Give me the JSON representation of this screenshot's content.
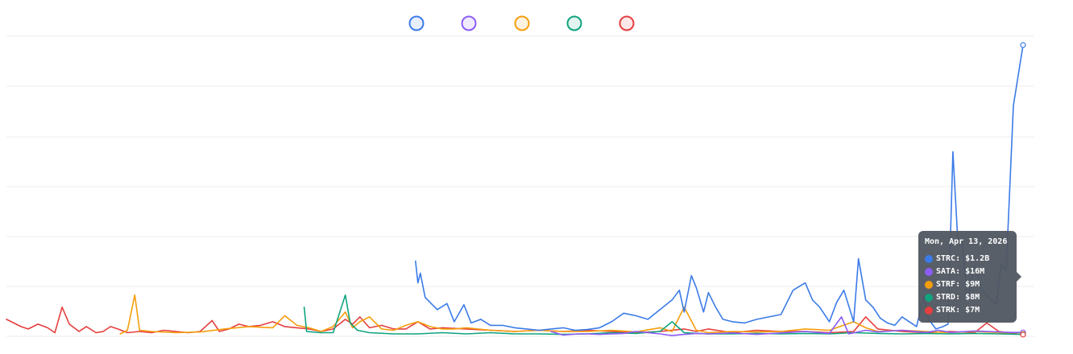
{
  "chart_data": {
    "type": "line",
    "title": "",
    "xlabel": "",
    "ylabel": "",
    "grid": true,
    "legend_placement": "top-center",
    "x_range": [
      0,
      422
    ],
    "ylim": [
      0,
      1200
    ],
    "series": [
      {
        "name": "STRC",
        "color": "#3b7be8",
        "points": [
          [
            169,
            310
          ],
          [
            170,
            220
          ],
          [
            171,
            260
          ],
          [
            173,
            160
          ],
          [
            175,
            140
          ],
          [
            178,
            110
          ],
          [
            182,
            135
          ],
          [
            185,
            60
          ],
          [
            189,
            130
          ],
          [
            192,
            55
          ],
          [
            196,
            70
          ],
          [
            200,
            45
          ],
          [
            205,
            45
          ],
          [
            210,
            35
          ],
          [
            215,
            30
          ],
          [
            220,
            25
          ],
          [
            225,
            30
          ],
          [
            230,
            35
          ],
          [
            235,
            25
          ],
          [
            240,
            28
          ],
          [
            245,
            35
          ],
          [
            250,
            60
          ],
          [
            255,
            95
          ],
          [
            260,
            85
          ],
          [
            265,
            70
          ],
          [
            270,
            110
          ],
          [
            275,
            150
          ],
          [
            278,
            190
          ],
          [
            280,
            100
          ],
          [
            283,
            250
          ],
          [
            285,
            200
          ],
          [
            288,
            100
          ],
          [
            290,
            180
          ],
          [
            293,
            120
          ],
          [
            296,
            70
          ],
          [
            300,
            60
          ],
          [
            305,
            55
          ],
          [
            310,
            70
          ],
          [
            315,
            80
          ],
          [
            320,
            90
          ],
          [
            325,
            190
          ],
          [
            330,
            220
          ],
          [
            333,
            150
          ],
          [
            336,
            120
          ],
          [
            340,
            60
          ],
          [
            343,
            140
          ],
          [
            346,
            190
          ],
          [
            350,
            60
          ],
          [
            352,
            320
          ],
          [
            355,
            150
          ],
          [
            358,
            120
          ],
          [
            361,
            75
          ],
          [
            364,
            55
          ],
          [
            367,
            45
          ],
          [
            370,
            80
          ],
          [
            373,
            60
          ],
          [
            376,
            40
          ],
          [
            379,
            165
          ],
          [
            381,
            70
          ],
          [
            384,
            30
          ],
          [
            387,
            40
          ],
          [
            389,
            50
          ],
          [
            391,
            760
          ],
          [
            393,
            400
          ],
          [
            395,
            380
          ],
          [
            397,
            150
          ],
          [
            400,
            290
          ],
          [
            403,
            190
          ],
          [
            406,
            160
          ],
          [
            409,
            130
          ],
          [
            411,
            300
          ],
          [
            413,
            270
          ],
          [
            416,
            950
          ],
          [
            420,
            1200
          ]
        ]
      },
      {
        "name": "SATA",
        "color": "#8b5cf6",
        "points": [
          [
            225,
            20
          ],
          [
            230,
            5
          ],
          [
            236,
            10
          ],
          [
            240,
            10
          ],
          [
            245,
            8
          ],
          [
            250,
            10
          ],
          [
            255,
            12
          ],
          [
            260,
            20
          ],
          [
            265,
            15
          ],
          [
            270,
            10
          ],
          [
            275,
            3
          ],
          [
            280,
            8
          ],
          [
            285,
            12
          ],
          [
            290,
            10
          ],
          [
            300,
            14
          ],
          [
            310,
            8
          ],
          [
            330,
            20
          ],
          [
            340,
            12
          ],
          [
            345,
            80
          ],
          [
            348,
            10
          ],
          [
            355,
            25
          ],
          [
            360,
            18
          ],
          [
            370,
            25
          ],
          [
            380,
            16
          ],
          [
            385,
            25
          ],
          [
            390,
            16
          ],
          [
            400,
            22
          ],
          [
            410,
            18
          ],
          [
            415,
            16
          ],
          [
            420,
            16
          ]
        ]
      },
      {
        "name": "STRF",
        "color": "#f59e0b",
        "points": [
          [
            47,
            10
          ],
          [
            50,
            25
          ],
          [
            53,
            170
          ],
          [
            55,
            25
          ],
          [
            60,
            20
          ],
          [
            70,
            15
          ],
          [
            80,
            18
          ],
          [
            90,
            30
          ],
          [
            100,
            40
          ],
          [
            110,
            35
          ],
          [
            115,
            85
          ],
          [
            120,
            45
          ],
          [
            125,
            35
          ],
          [
            130,
            20
          ],
          [
            135,
            40
          ],
          [
            140,
            100
          ],
          [
            143,
            35
          ],
          [
            146,
            60
          ],
          [
            150,
            80
          ],
          [
            155,
            30
          ],
          [
            160,
            25
          ],
          [
            165,
            45
          ],
          [
            170,
            60
          ],
          [
            175,
            40
          ],
          [
            180,
            30
          ],
          [
            185,
            30
          ],
          [
            190,
            35
          ],
          [
            200,
            25
          ],
          [
            210,
            20
          ],
          [
            220,
            25
          ],
          [
            230,
            20
          ],
          [
            240,
            20
          ],
          [
            250,
            25
          ],
          [
            260,
            18
          ],
          [
            270,
            35
          ],
          [
            275,
            20
          ],
          [
            280,
            120
          ],
          [
            285,
            25
          ],
          [
            290,
            15
          ],
          [
            300,
            20
          ],
          [
            310,
            18
          ],
          [
            320,
            20
          ],
          [
            330,
            30
          ],
          [
            340,
            25
          ],
          [
            350,
            60
          ],
          [
            355,
            35
          ],
          [
            360,
            20
          ],
          [
            370,
            25
          ],
          [
            380,
            20
          ],
          [
            390,
            15
          ],
          [
            400,
            20
          ],
          [
            410,
            15
          ],
          [
            415,
            10
          ],
          [
            420,
            9
          ]
        ]
      },
      {
        "name": "STRD",
        "color": "#10a37f",
        "points": [
          [
            123,
            120
          ],
          [
            124,
            20
          ],
          [
            130,
            15
          ],
          [
            135,
            15
          ],
          [
            140,
            170
          ],
          [
            142,
            55
          ],
          [
            145,
            25
          ],
          [
            150,
            15
          ],
          [
            160,
            10
          ],
          [
            170,
            10
          ],
          [
            180,
            15
          ],
          [
            190,
            10
          ],
          [
            200,
            15
          ],
          [
            210,
            10
          ],
          [
            220,
            10
          ],
          [
            230,
            8
          ],
          [
            240,
            10
          ],
          [
            250,
            15
          ],
          [
            260,
            12
          ],
          [
            270,
            20
          ],
          [
            275,
            60
          ],
          [
            280,
            15
          ],
          [
            290,
            10
          ],
          [
            300,
            10
          ],
          [
            310,
            12
          ],
          [
            320,
            10
          ],
          [
            330,
            12
          ],
          [
            340,
            10
          ],
          [
            350,
            15
          ],
          [
            360,
            12
          ],
          [
            370,
            10
          ],
          [
            380,
            12
          ],
          [
            390,
            10
          ],
          [
            400,
            12
          ],
          [
            410,
            10
          ],
          [
            420,
            8
          ]
        ]
      },
      {
        "name": "STRK",
        "color": "#e53e3e",
        "points": [
          [
            0,
            70
          ],
          [
            3,
            55
          ],
          [
            6,
            40
          ],
          [
            9,
            30
          ],
          [
            13,
            50
          ],
          [
            17,
            35
          ],
          [
            20,
            15
          ],
          [
            23,
            120
          ],
          [
            26,
            50
          ],
          [
            30,
            20
          ],
          [
            33,
            40
          ],
          [
            37,
            15
          ],
          [
            40,
            20
          ],
          [
            43,
            40
          ],
          [
            46,
            30
          ],
          [
            50,
            15
          ],
          [
            55,
            20
          ],
          [
            60,
            15
          ],
          [
            65,
            25
          ],
          [
            70,
            20
          ],
          [
            75,
            15
          ],
          [
            80,
            20
          ],
          [
            85,
            65
          ],
          [
            88,
            20
          ],
          [
            92,
            30
          ],
          [
            96,
            50
          ],
          [
            100,
            40
          ],
          [
            105,
            45
          ],
          [
            110,
            60
          ],
          [
            115,
            40
          ],
          [
            120,
            35
          ],
          [
            125,
            30
          ],
          [
            130,
            20
          ],
          [
            135,
            30
          ],
          [
            140,
            70
          ],
          [
            143,
            50
          ],
          [
            146,
            80
          ],
          [
            150,
            35
          ],
          [
            155,
            45
          ],
          [
            160,
            30
          ],
          [
            165,
            30
          ],
          [
            170,
            60
          ],
          [
            175,
            30
          ],
          [
            180,
            35
          ],
          [
            190,
            30
          ],
          [
            200,
            25
          ],
          [
            210,
            20
          ],
          [
            220,
            25
          ],
          [
            230,
            20
          ],
          [
            240,
            25
          ],
          [
            250,
            20
          ],
          [
            260,
            15
          ],
          [
            270,
            20
          ],
          [
            280,
            30
          ],
          [
            285,
            20
          ],
          [
            290,
            30
          ],
          [
            300,
            15
          ],
          [
            310,
            25
          ],
          [
            320,
            20
          ],
          [
            330,
            20
          ],
          [
            340,
            15
          ],
          [
            350,
            20
          ],
          [
            355,
            80
          ],
          [
            360,
            30
          ],
          [
            370,
            20
          ],
          [
            380,
            15
          ],
          [
            390,
            20
          ],
          [
            400,
            15
          ],
          [
            405,
            55
          ],
          [
            410,
            20
          ],
          [
            420,
            7
          ]
        ]
      }
    ],
    "tooltip": {
      "title": "Mon, Apr 13, 2026",
      "rows": [
        {
          "series": "STRC",
          "text": "STRC: $1.2B",
          "color": "#3b7be8"
        },
        {
          "series": "SATA",
          "text": "SATA: $16M",
          "color": "#8b5cf6"
        },
        {
          "series": "STRF",
          "text": "STRF: $9M",
          "color": "#f59e0b"
        },
        {
          "series": "STRD",
          "text": "STRD: $8M",
          "color": "#10a37f"
        },
        {
          "series": "STRK",
          "text": "STRK: $7M",
          "color": "#e53e3e"
        }
      ]
    }
  }
}
